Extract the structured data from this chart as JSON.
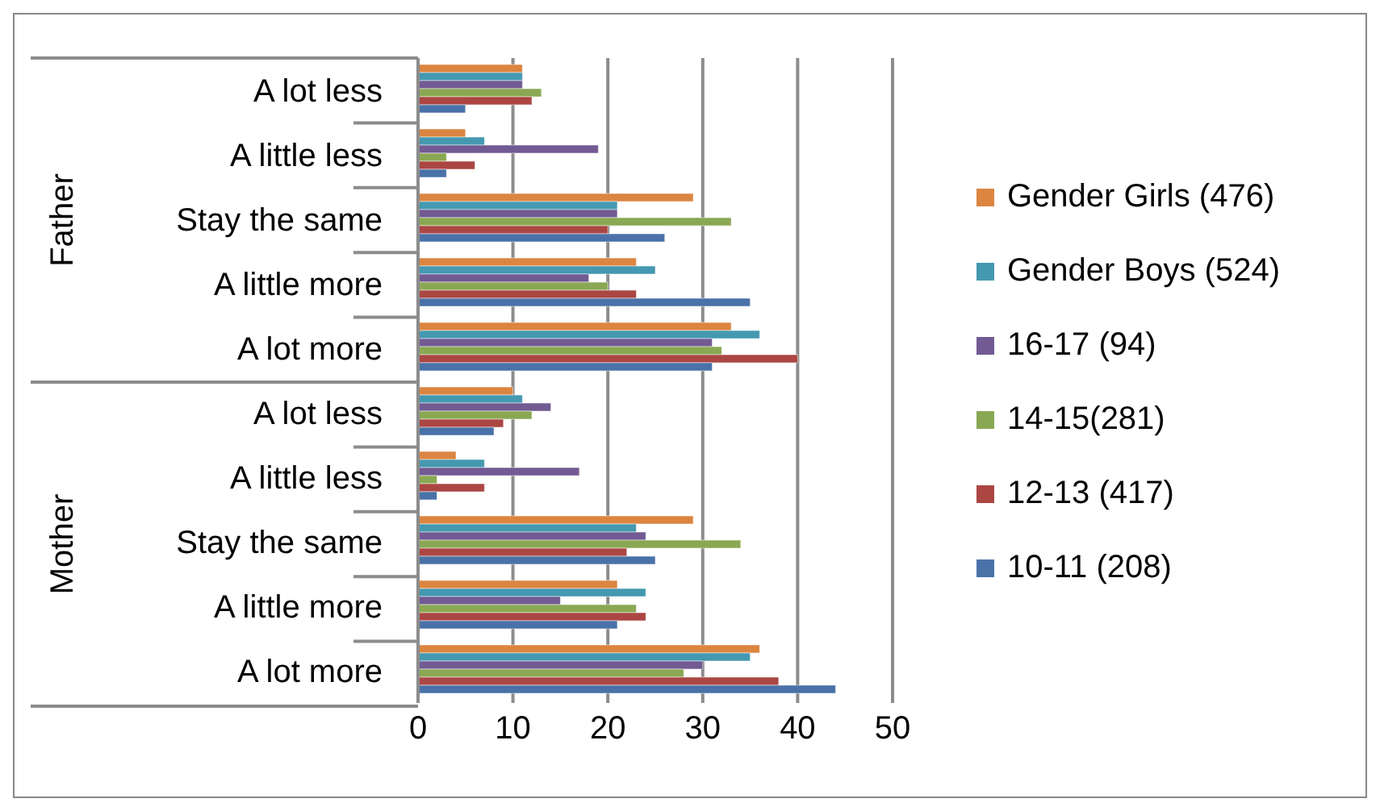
{
  "chart_data": {
    "type": "bar",
    "orientation": "horizontal",
    "categories": [
      "A lot less",
      "A little less",
      "Stay the same",
      "A little more",
      "A lot more",
      "A lot less",
      "A little less",
      "Stay the same",
      "A little more",
      "A lot more"
    ],
    "annotations": [
      "Father",
      "Mother"
    ],
    "series": [
      {
        "name": "Gender Girls (476)",
        "color": "#dc8540",
        "values": [
          11,
          5,
          29,
          23,
          33,
          10,
          4,
          29,
          21,
          36
        ]
      },
      {
        "name": "Gender Boys (524)",
        "color": "#4499b1",
        "values": [
          11,
          7,
          21,
          25,
          36,
          11,
          7,
          23,
          24,
          35
        ]
      },
      {
        "name": "16-17 (94)",
        "color": "#725a93",
        "values": [
          11,
          19,
          21,
          18,
          31,
          14,
          17,
          24,
          15,
          30
        ]
      },
      {
        "name": "14-15(281)",
        "color": "#8aa853",
        "values": [
          13,
          3,
          33,
          20,
          32,
          12,
          2,
          34,
          23,
          28
        ]
      },
      {
        "name": "12-13 (417)",
        "color": "#ab4643",
        "values": [
          12,
          6,
          20,
          23,
          40,
          9,
          7,
          22,
          24,
          38
        ]
      },
      {
        "name": "10-11 (208)",
        "color": "#4a72a8",
        "values": [
          5,
          3,
          26,
          35,
          31,
          8,
          2,
          25,
          21,
          44
        ]
      }
    ],
    "xlim": [
      0,
      50
    ],
    "xticks": [
      0,
      10,
      20,
      30,
      40,
      50
    ],
    "grid": "x",
    "legend": "right"
  }
}
